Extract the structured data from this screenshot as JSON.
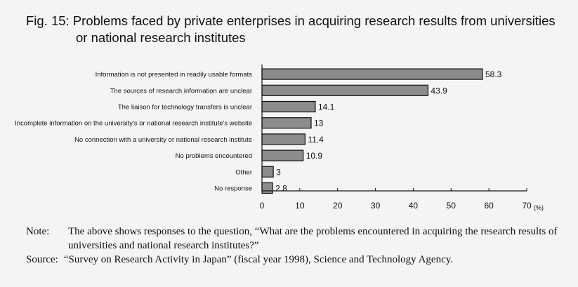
{
  "figure": {
    "title_line1": "Fig. 15: Problems faced by private enterprises in acquiring research results from universities",
    "title_line2": "or national research institutes"
  },
  "chart_data": {
    "type": "bar",
    "orientation": "horizontal",
    "categories": [
      "Information is not presented in readily usable formats",
      "The sources of research information are unclear",
      "The liaison for technology transfers is unclear",
      "Incomplete information on the university's or national research institute's website",
      "No connection with a university or national research institute",
      "No problems encountered",
      "Other",
      "No response"
    ],
    "values": [
      58.3,
      43.9,
      14.1,
      13,
      11.4,
      10.9,
      3,
      2.8
    ],
    "value_labels": [
      "58.3",
      "43.9",
      "14.1",
      "13",
      "11.4",
      "10.9",
      "3",
      "2.8"
    ],
    "xlim": [
      0,
      70
    ],
    "xticks": [
      "0",
      "10",
      "20",
      "30",
      "40",
      "50",
      "60",
      "70"
    ],
    "unit": "(%)",
    "bar_color": "#8c8c8c",
    "grid": false
  },
  "notes": {
    "note_label": "Note:",
    "note_text": "The above shows responses to the question, “What are the problems encountered in acquiring the research results of universities and national research institutes?”",
    "source_label": "Source:",
    "source_text": "“Survey on Research Activity in Japan” (fiscal year 1998), Science and Technology Agency."
  }
}
